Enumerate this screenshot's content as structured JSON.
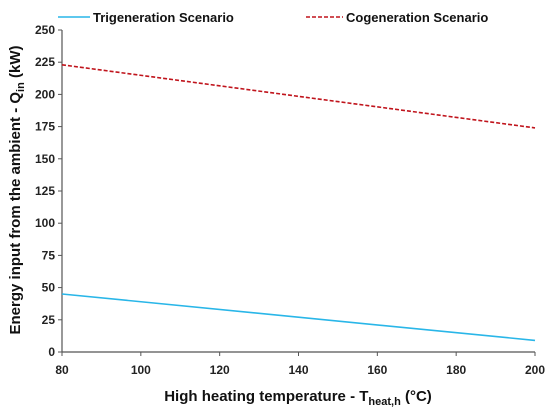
{
  "chart_data": {
    "type": "line",
    "xlabel": {
      "main": "High heating temperature - T",
      "sub": "heat,h",
      "unit": " (°C)"
    },
    "ylabel": {
      "main": "Energy input from the ambient - Q",
      "sub": "in",
      "unit": " (kW)"
    },
    "xlim": [
      80,
      200
    ],
    "ylim": [
      0,
      250
    ],
    "x_ticks": [
      80,
      100,
      120,
      140,
      160,
      180,
      200
    ],
    "y_ticks": [
      0,
      25,
      50,
      75,
      100,
      125,
      150,
      175,
      200,
      225,
      250
    ],
    "grid": false,
    "legend_position": "top",
    "series": [
      {
        "name": "Trigeneration Scenario",
        "color": "#29b6e8",
        "style": "solid",
        "x": [
          80,
          200
        ],
        "y": [
          45,
          9
        ]
      },
      {
        "name": "Cogeneration Scenario",
        "color": "#c0141c",
        "style": "dashed",
        "x": [
          80,
          200
        ],
        "y": [
          223,
          174
        ]
      }
    ]
  }
}
